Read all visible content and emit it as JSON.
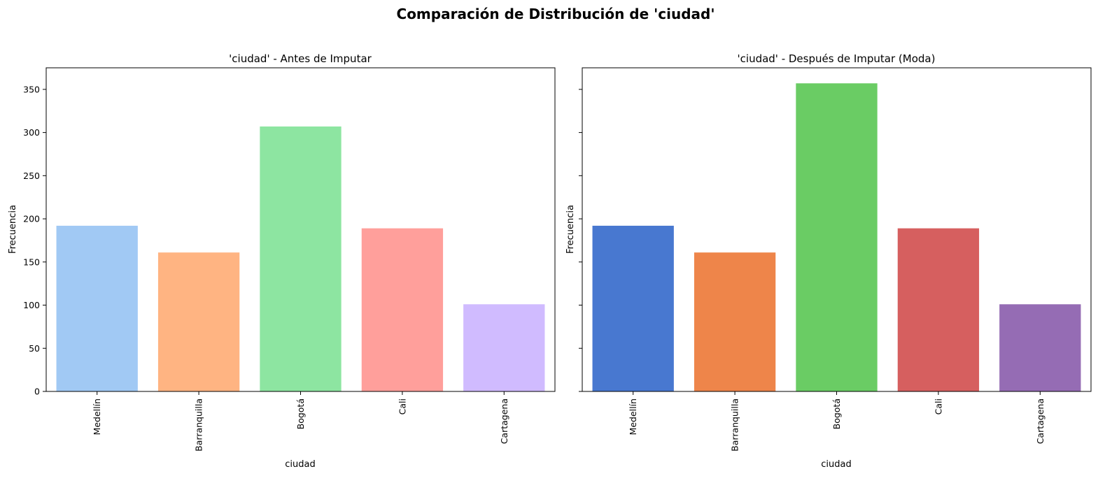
{
  "figure": {
    "suptitle": "Comparación de Distribución de 'ciudad'"
  },
  "chart_data": [
    {
      "type": "bar",
      "title": "'ciudad' - Antes de Imputar",
      "xlabel": "ciudad",
      "ylabel": "Frecuencia",
      "categories": [
        "Medellín",
        "Barranquilla",
        "Bogotá",
        "Cali",
        "Cartagena"
      ],
      "values": [
        192,
        161,
        307,
        189,
        101
      ],
      "colors": [
        "#a1c9f4",
        "#ffb482",
        "#8de5a1",
        "#ff9f9b",
        "#d0bbff"
      ],
      "ylim": [
        0,
        375
      ],
      "yticks": [
        0,
        50,
        100,
        150,
        200,
        250,
        300,
        350
      ],
      "grid": false
    },
    {
      "type": "bar",
      "title": "'ciudad' - Después de Imputar (Moda)",
      "xlabel": "ciudad",
      "ylabel": "Frecuencia",
      "categories": [
        "Medellín",
        "Barranquilla",
        "Bogotá",
        "Cali",
        "Cartagena"
      ],
      "values": [
        192,
        161,
        357,
        189,
        101
      ],
      "colors": [
        "#4878d0",
        "#ee854a",
        "#6acc64",
        "#d65f5f",
        "#956cb4"
      ],
      "ylim": [
        0,
        375
      ],
      "yticks": [
        0,
        50,
        100,
        150,
        200,
        250,
        300,
        350
      ],
      "grid": false,
      "sharey": true
    }
  ]
}
